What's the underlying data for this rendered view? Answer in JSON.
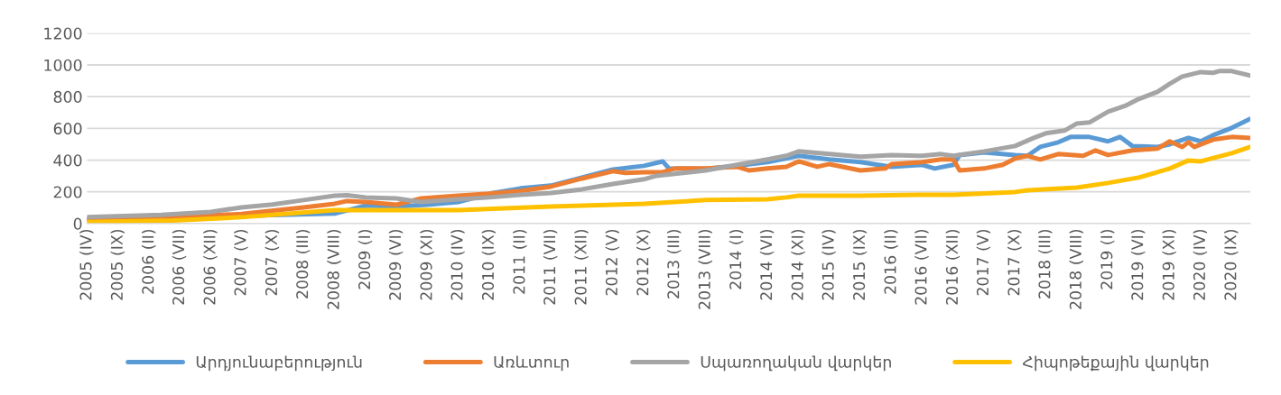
{
  "chart_data": {
    "type": "line",
    "ylim": [
      0,
      1200
    ],
    "yticks": [
      0,
      200,
      400,
      600,
      800,
      1000,
      1200
    ],
    "xlim": [
      "2005-04",
      "2020-12"
    ],
    "xticks": [
      {
        "value": "2005-04",
        "label": "2005 (IV)"
      },
      {
        "value": "2005-09",
        "label": "2005 (IX)"
      },
      {
        "value": "2006-02",
        "label": "2006 (II)"
      },
      {
        "value": "2006-07",
        "label": "2006 (VII)"
      },
      {
        "value": "2006-12",
        "label": "2006 (XII)"
      },
      {
        "value": "2007-05",
        "label": "2007 (V)"
      },
      {
        "value": "2007-10",
        "label": "2007 (X)"
      },
      {
        "value": "2008-03",
        "label": "2008 (III)"
      },
      {
        "value": "2008-08",
        "label": "2008 (VIII)"
      },
      {
        "value": "2009-01",
        "label": "2009 (I)"
      },
      {
        "value": "2009-06",
        "label": "2009 (VI)"
      },
      {
        "value": "2009-11",
        "label": "2009 (XI)"
      },
      {
        "value": "2010-04",
        "label": "2010 (IV)"
      },
      {
        "value": "2010-09",
        "label": "2010 (IX)"
      },
      {
        "value": "2011-02",
        "label": "2011 (II)"
      },
      {
        "value": "2011-07",
        "label": "2011 (VII)"
      },
      {
        "value": "2011-12",
        "label": "2011 (XII)"
      },
      {
        "value": "2012-05",
        "label": "2012 (V)"
      },
      {
        "value": "2012-10",
        "label": "2012 (X)"
      },
      {
        "value": "2013-03",
        "label": "2013 (III)"
      },
      {
        "value": "2013-08",
        "label": "2013 (VIII)"
      },
      {
        "value": "2014-01",
        "label": "2014 (I)"
      },
      {
        "value": "2014-06",
        "label": "2014 (VI)"
      },
      {
        "value": "2014-11",
        "label": "2014 (XI)"
      },
      {
        "value": "2015-04",
        "label": "2015 (IV)"
      },
      {
        "value": "2015-09",
        "label": "2015 (IX)"
      },
      {
        "value": "2016-02",
        "label": "2016 (II)"
      },
      {
        "value": "2016-07",
        "label": "2016 (VII)"
      },
      {
        "value": "2016-12",
        "label": "2016 (XII)"
      },
      {
        "value": "2017-05",
        "label": "2017 (V)"
      },
      {
        "value": "2017-10",
        "label": "2017 (X)"
      },
      {
        "value": "2018-03",
        "label": "2018 (III)"
      },
      {
        "value": "2018-08",
        "label": "2018 (VIII)"
      },
      {
        "value": "2019-01",
        "label": "2019 (I)"
      },
      {
        "value": "2019-06",
        "label": "2019 (VI)"
      },
      {
        "value": "2019-11",
        "label": "2019 (XI)"
      },
      {
        "value": "2020-04",
        "label": "2020 (IV)"
      },
      {
        "value": "2020-09",
        "label": "2020 (IX)"
      }
    ],
    "grid": "y",
    "legend": "bottom",
    "marker": "none",
    "line_style": "solid",
    "series": [
      {
        "name": "Արդյունաբերություն",
        "color": "#5b9bd5",
        "x": [
          "2005-04",
          "2006-04",
          "2008-08",
          "2009-01",
          "2009-06",
          "2009-11",
          "2010-04",
          "2010-09",
          "2011-02",
          "2011-07",
          "2012-05",
          "2012-10",
          "2013-01",
          "2013-02",
          "2013-08",
          "2014-01",
          "2014-06",
          "2014-11",
          "2015-04",
          "2015-09",
          "2016-02",
          "2016-07",
          "2016-09",
          "2016-12",
          "2017-01",
          "2017-05",
          "2017-10",
          "2017-12",
          "2018-02",
          "2018-05",
          "2018-07",
          "2018-10",
          "2019-01",
          "2019-03",
          "2019-05",
          "2019-09",
          "2019-11",
          "2020-02",
          "2020-04",
          "2020-06",
          "2020-09",
          "2020-12"
        ],
        "values": [
          25,
          35,
          63,
          113,
          108,
          119,
          136,
          188,
          222,
          239,
          341,
          364,
          392,
          347,
          345,
          365,
          387,
          427,
          404,
          387,
          358,
          370,
          347,
          370,
          432,
          449,
          432,
          427,
          483,
          512,
          546,
          546,
          518,
          546,
          489,
          483,
          500,
          540,
          518,
          557,
          603,
          660
        ]
      },
      {
        "name": "Առևտուր",
        "color": "#ed7d31",
        "x": [
          "2005-04",
          "2006-04",
          "2007-05",
          "2008-03",
          "2008-08",
          "2008-10",
          "2009-01",
          "2009-06",
          "2009-10",
          "2010-04",
          "2010-09",
          "2011-02",
          "2011-07",
          "2011-12",
          "2012-05",
          "2012-07",
          "2012-10",
          "2013-01",
          "2013-03",
          "2013-08",
          "2014-01",
          "2014-03",
          "2014-06",
          "2014-09",
          "2014-11",
          "2015-02",
          "2015-04",
          "2015-09",
          "2016-01",
          "2016-02",
          "2016-07",
          "2016-10",
          "2016-12",
          "2017-01",
          "2017-05",
          "2017-08",
          "2017-10",
          "2017-12",
          "2018-02",
          "2018-05",
          "2018-09",
          "2018-11",
          "2019-01",
          "2019-05",
          "2019-09",
          "2019-11",
          "2020-01",
          "2020-02",
          "2020-03",
          "2020-06",
          "2020-09",
          "2020-12"
        ],
        "values": [
          30,
          40,
          60,
          102,
          125,
          142,
          136,
          119,
          159,
          176,
          188,
          205,
          233,
          284,
          330,
          319,
          324,
          324,
          347,
          347,
          358,
          335,
          347,
          358,
          392,
          358,
          375,
          335,
          347,
          375,
          387,
          404,
          404,
          335,
          347,
          370,
          410,
          427,
          404,
          438,
          427,
          461,
          432,
          461,
          472,
          518,
          483,
          512,
          483,
          529,
          546,
          540
        ]
      },
      {
        "name": "Սպառողական վարկեր",
        "color": "#a5a5a5",
        "x": [
          "2005-04",
          "2006-04",
          "2006-12",
          "2007-05",
          "2007-10",
          "2008-03",
          "2008-08",
          "2008-10",
          "2009-01",
          "2009-06",
          "2009-10",
          "2010-04",
          "2010-09",
          "2011-02",
          "2011-07",
          "2011-12",
          "2012-05",
          "2012-10",
          "2012-12",
          "2013-03",
          "2013-08",
          "2014-01",
          "2014-06",
          "2014-09",
          "2014-11",
          "2015-04",
          "2015-09",
          "2016-02",
          "2016-07",
          "2016-10",
          "2016-12",
          "2017-05",
          "2017-10",
          "2018-01",
          "2018-03",
          "2018-06",
          "2018-08",
          "2018-10",
          "2019-01",
          "2019-04",
          "2019-06",
          "2019-09",
          "2019-11",
          "2020-01",
          "2020-04",
          "2020-06",
          "2020-07",
          "2020-09",
          "2020-12"
        ],
        "values": [
          40,
          55,
          74,
          102,
          120,
          148,
          176,
          178,
          165,
          159,
          136,
          153,
          165,
          182,
          193,
          216,
          250,
          279,
          301,
          313,
          335,
          370,
          404,
          427,
          455,
          438,
          421,
          432,
          427,
          438,
          427,
          455,
          489,
          540,
          569,
          586,
          631,
          637,
          705,
          745,
          785,
          830,
          881,
          927,
          955,
          950,
          961,
          961,
          933
        ]
      },
      {
        "name": "Հիպոթեքային վարկեր",
        "color": "#ffc000",
        "x": [
          "2005-04",
          "2006-06",
          "2007-05",
          "2008-08",
          "2009-01",
          "2010-04",
          "2011-07",
          "2012-05",
          "2012-10",
          "2013-08",
          "2014-06",
          "2014-09",
          "2014-11",
          "2015-09",
          "2016-07",
          "2016-12",
          "2017-10",
          "2017-12",
          "2018-08",
          "2019-01",
          "2019-06",
          "2019-11",
          "2020-02",
          "2020-04",
          "2020-09",
          "2020-12"
        ],
        "values": [
          10,
          20,
          40,
          85,
          85,
          85,
          108,
          119,
          125,
          148,
          153,
          165,
          176,
          176,
          182,
          182,
          199,
          210,
          227,
          256,
          290,
          347,
          398,
          392,
          444,
          483
        ]
      }
    ]
  }
}
